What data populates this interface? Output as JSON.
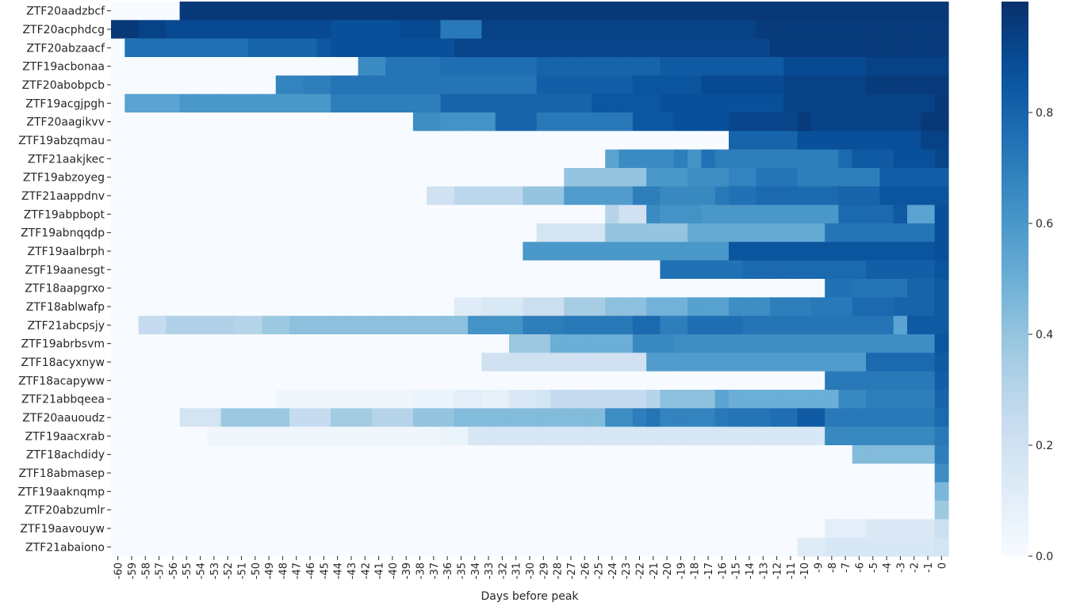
{
  "chart_data": {
    "type": "heatmap",
    "xlabel": "Days before peak",
    "ylabel": "",
    "x": [
      -60,
      -59,
      -58,
      -57,
      -56,
      -55,
      -54,
      -53,
      -52,
      -51,
      -50,
      -49,
      -48,
      -47,
      -46,
      -45,
      -44,
      -43,
      -42,
      -41,
      -40,
      -39,
      -38,
      -37,
      -36,
      -35,
      -34,
      -33,
      -32,
      -31,
      -30,
      -29,
      -28,
      -27,
      -26,
      -25,
      -24,
      -23,
      -22,
      -21,
      -20,
      -19,
      -18,
      -17,
      -16,
      -15,
      -14,
      -13,
      -12,
      -11,
      -10,
      -9,
      -8,
      -7,
      -6,
      -5,
      -4,
      -3,
      -2,
      -1,
      0
    ],
    "rows": [
      "ZTF20aadzbcf",
      "ZTF20acphdcg",
      "ZTF20abzaacf",
      "ZTF19acbonaa",
      "ZTF20abobpcb",
      "ZTF19acgjpgh",
      "ZTF20aagikvv",
      "ZTF19abzqmau",
      "ZTF21aakjkec",
      "ZTF19abzoyeg",
      "ZTF21aappdnv",
      "ZTF19abpbopt",
      "ZTF19abnqqdp",
      "ZTF19aalbrph",
      "ZTF19aanesgt",
      "ZTF18aapgrxo",
      "ZTF18ablwafp",
      "ZTF21abcpsjy",
      "ZTF19abrbsvm",
      "ZTF18acyxnyw",
      "ZTF18acapyww",
      "ZTF21abbqeea",
      "ZTF20aauoudz",
      "ZTF19aacxrab",
      "ZTF18achdidy",
      "ZTF18abmasep",
      "ZTF19aaknqmp",
      "ZTF20abzumlr",
      "ZTF19aavouyw",
      "ZTF21abaiono"
    ],
    "segments": [
      [
        [
          -60,
          -56,
          0.0
        ],
        [
          -55,
          0,
          0.97
        ]
      ],
      [
        [
          -60,
          -59,
          0.97
        ],
        [
          -58,
          -57,
          0.93
        ],
        [
          -56,
          -45,
          0.9
        ],
        [
          -44,
          -40,
          0.88
        ],
        [
          -39,
          -37,
          0.9
        ],
        [
          -36,
          -34,
          0.72
        ],
        [
          -33,
          -14,
          0.93
        ],
        [
          -13,
          0,
          0.96
        ]
      ],
      [
        [
          -60,
          -59,
          0.0
        ],
        [
          -59,
          -51,
          0.75
        ],
        [
          -50,
          -46,
          0.8
        ],
        [
          -45,
          -45,
          0.85
        ],
        [
          -44,
          -36,
          0.88
        ],
        [
          -35,
          -13,
          0.92
        ],
        [
          -12,
          0,
          0.96
        ]
      ],
      [
        [
          -60,
          -43,
          0.0
        ],
        [
          -42,
          -41,
          0.65
        ],
        [
          -40,
          -37,
          0.74
        ],
        [
          -36,
          -30,
          0.76
        ],
        [
          -29,
          -21,
          0.8
        ],
        [
          -20,
          -12,
          0.84
        ],
        [
          -11,
          -6,
          0.9
        ],
        [
          -5,
          0,
          0.93
        ]
      ],
      [
        [
          -60,
          -49,
          0.0
        ],
        [
          -48,
          -47,
          0.68
        ],
        [
          -46,
          -45,
          0.7
        ],
        [
          -44,
          -30,
          0.74
        ],
        [
          -29,
          -23,
          0.82
        ],
        [
          -22,
          -18,
          0.86
        ],
        [
          -17,
          -12,
          0.9
        ],
        [
          -11,
          -6,
          0.93
        ],
        [
          -5,
          0,
          0.96
        ]
      ],
      [
        [
          -60,
          -59,
          0.0
        ],
        [
          -59,
          -56,
          0.55
        ],
        [
          -55,
          -45,
          0.6
        ],
        [
          -44,
          -37,
          0.7
        ],
        [
          -36,
          -26,
          0.8
        ],
        [
          -25,
          -21,
          0.85
        ],
        [
          -20,
          -12,
          0.88
        ],
        [
          -11,
          -1,
          0.93
        ],
        [
          0,
          0,
          0.97
        ]
      ],
      [
        [
          -60,
          -39,
          0.0
        ],
        [
          -38,
          -37,
          0.64
        ],
        [
          -36,
          -33,
          0.62
        ],
        [
          -32,
          -30,
          0.8
        ],
        [
          -29,
          -23,
          0.72
        ],
        [
          -22,
          -20,
          0.85
        ],
        [
          -19,
          -16,
          0.88
        ],
        [
          -15,
          -11,
          0.92
        ],
        [
          -10,
          -10,
          0.96
        ],
        [
          -9,
          -2,
          0.93
        ],
        [
          -1,
          0,
          0.97
        ]
      ],
      [
        [
          -60,
          -16,
          0.0
        ],
        [
          -15,
          -11,
          0.8
        ],
        [
          -10,
          -2,
          0.88
        ],
        [
          -1,
          0,
          0.93
        ]
      ],
      [
        [
          -60,
          -25,
          0.0
        ],
        [
          -24,
          -24,
          0.55
        ],
        [
          -23,
          -20,
          0.65
        ],
        [
          -19,
          -19,
          0.7
        ],
        [
          -18,
          -18,
          0.62
        ],
        [
          -17,
          -17,
          0.75
        ],
        [
          -16,
          -8,
          0.7
        ],
        [
          -7,
          -7,
          0.78
        ],
        [
          -6,
          -4,
          0.84
        ],
        [
          -3,
          -1,
          0.88
        ],
        [
          0,
          0,
          0.92
        ]
      ],
      [
        [
          -60,
          -28,
          0.0
        ],
        [
          -27,
          -22,
          0.4
        ],
        [
          -21,
          -19,
          0.6
        ],
        [
          -18,
          -16,
          0.64
        ],
        [
          -15,
          -14,
          0.68
        ],
        [
          -13,
          -11,
          0.74
        ],
        [
          -10,
          -5,
          0.7
        ],
        [
          -4,
          0,
          0.82
        ]
      ],
      [
        [
          -60,
          -38,
          0.0
        ],
        [
          -37,
          -36,
          0.2
        ],
        [
          -35,
          -31,
          0.28
        ],
        [
          -30,
          -28,
          0.4
        ],
        [
          -27,
          -23,
          0.58
        ],
        [
          -22,
          -21,
          0.7
        ],
        [
          -20,
          -17,
          0.66
        ],
        [
          -16,
          -16,
          0.72
        ],
        [
          -15,
          -14,
          0.75
        ],
        [
          -13,
          -8,
          0.78
        ],
        [
          -7,
          -5,
          0.8
        ],
        [
          -4,
          0,
          0.86
        ]
      ],
      [
        [
          -60,
          -25,
          0.0
        ],
        [
          -24,
          -24,
          0.3
        ],
        [
          -23,
          -22,
          0.2
        ],
        [
          -21,
          -21,
          0.65
        ],
        [
          -20,
          -18,
          0.62
        ],
        [
          -17,
          -8,
          0.6
        ],
        [
          -7,
          -4,
          0.78
        ],
        [
          -3,
          -3,
          0.84
        ],
        [
          -2,
          -1,
          0.55
        ],
        [
          0,
          0,
          0.88
        ]
      ],
      [
        [
          -60,
          -30,
          0.0
        ],
        [
          -29,
          -25,
          0.18
        ],
        [
          -24,
          -19,
          0.4
        ],
        [
          -18,
          -9,
          0.52
        ],
        [
          -8,
          -1,
          0.74
        ],
        [
          0,
          0,
          0.88
        ]
      ],
      [
        [
          -60,
          -31,
          0.0
        ],
        [
          -30,
          -16,
          0.6
        ],
        [
          -15,
          -1,
          0.86
        ],
        [
          0,
          0,
          0.88
        ]
      ],
      [
        [
          -60,
          -21,
          0.0
        ],
        [
          -20,
          -15,
          0.75
        ],
        [
          -14,
          -6,
          0.78
        ],
        [
          -5,
          -1,
          0.82
        ],
        [
          0,
          0,
          0.86
        ]
      ],
      [
        [
          -60,
          -9,
          0.0
        ],
        [
          -8,
          -7,
          0.75
        ],
        [
          -6,
          -3,
          0.74
        ],
        [
          -2,
          -1,
          0.8
        ],
        [
          0,
          0,
          0.84
        ]
      ],
      [
        [
          -60,
          -36,
          0.0
        ],
        [
          -35,
          -34,
          0.12
        ],
        [
          -33,
          -31,
          0.15
        ],
        [
          -30,
          -28,
          0.22
        ],
        [
          -27,
          -25,
          0.35
        ],
        [
          -24,
          -22,
          0.42
        ],
        [
          -21,
          -19,
          0.48
        ],
        [
          -18,
          -16,
          0.56
        ],
        [
          -15,
          -13,
          0.64
        ],
        [
          -12,
          -10,
          0.7
        ],
        [
          -9,
          -7,
          0.72
        ],
        [
          -6,
          -4,
          0.78
        ],
        [
          -3,
          -1,
          0.8
        ],
        [
          0,
          0,
          0.84
        ]
      ],
      [
        [
          -60,
          -59,
          0.0
        ],
        [
          -58,
          -57,
          0.25
        ],
        [
          -56,
          -52,
          0.32
        ],
        [
          -51,
          -50,
          0.3
        ],
        [
          -49,
          -48,
          0.38
        ],
        [
          -47,
          -35,
          0.42
        ],
        [
          -34,
          -31,
          0.62
        ],
        [
          -30,
          -28,
          0.7
        ],
        [
          -27,
          -23,
          0.72
        ],
        [
          -22,
          -21,
          0.78
        ],
        [
          -20,
          -19,
          0.7
        ],
        [
          -18,
          -15,
          0.76
        ],
        [
          -14,
          -4,
          0.74
        ],
        [
          -3,
          -3,
          0.55
        ],
        [
          -2,
          -1,
          0.84
        ],
        [
          0,
          0,
          0.84
        ]
      ],
      [
        [
          -60,
          -32,
          0.0
        ],
        [
          -31,
          -29,
          0.38
        ],
        [
          -28,
          -23,
          0.5
        ],
        [
          -22,
          -20,
          0.66
        ],
        [
          -19,
          -1,
          0.64
        ],
        [
          0,
          0,
          0.86
        ]
      ],
      [
        [
          -60,
          -34,
          0.0
        ],
        [
          -33,
          -22,
          0.2
        ],
        [
          -21,
          -6,
          0.58
        ],
        [
          -5,
          -1,
          0.78
        ],
        [
          0,
          0,
          0.84
        ]
      ],
      [
        [
          -60,
          -9,
          0.0
        ],
        [
          -8,
          -1,
          0.72
        ],
        [
          0,
          0,
          0.82
        ]
      ],
      [
        [
          -60,
          -49,
          0.0
        ],
        [
          -48,
          -39,
          0.04
        ],
        [
          -38,
          -36,
          0.06
        ],
        [
          -35,
          -34,
          0.1
        ],
        [
          -33,
          -32,
          0.08
        ],
        [
          -31,
          -30,
          0.14
        ],
        [
          -29,
          -29,
          0.18
        ],
        [
          -28,
          -22,
          0.25
        ],
        [
          -21,
          -21,
          0.3
        ],
        [
          -20,
          -17,
          0.42
        ],
        [
          -16,
          -16,
          0.55
        ],
        [
          -15,
          -8,
          0.5
        ],
        [
          -7,
          -6,
          0.66
        ],
        [
          -5,
          -1,
          0.7
        ],
        [
          0,
          0,
          0.8
        ]
      ],
      [
        [
          -60,
          -56,
          0.0
        ],
        [
          -55,
          -53,
          0.18
        ],
        [
          -52,
          -48,
          0.38
        ],
        [
          -47,
          -45,
          0.25
        ],
        [
          -44,
          -42,
          0.36
        ],
        [
          -41,
          -39,
          0.3
        ],
        [
          -38,
          -36,
          0.4
        ],
        [
          -35,
          -25,
          0.44
        ],
        [
          -24,
          -23,
          0.64
        ],
        [
          -22,
          -22,
          0.7
        ],
        [
          -21,
          -21,
          0.74
        ],
        [
          -20,
          -17,
          0.68
        ],
        [
          -16,
          -16,
          0.72
        ],
        [
          -15,
          -13,
          0.74
        ],
        [
          -12,
          -11,
          0.76
        ],
        [
          -10,
          -9,
          0.84
        ],
        [
          -8,
          -1,
          0.72
        ],
        [
          0,
          0,
          0.78
        ]
      ],
      [
        [
          -60,
          -54,
          0.0
        ],
        [
          -53,
          -37,
          0.04
        ],
        [
          -36,
          -35,
          0.06
        ],
        [
          -34,
          -9,
          0.16
        ],
        [
          -8,
          -1,
          0.66
        ],
        [
          0,
          0,
          0.72
        ]
      ],
      [
        [
          -60,
          -7,
          0.0
        ],
        [
          -6,
          -1,
          0.44
        ],
        [
          0,
          0,
          0.7
        ]
      ],
      [
        [
          -60,
          -1,
          0.0
        ],
        [
          0,
          0,
          0.64
        ]
      ],
      [
        [
          -60,
          -1,
          0.0
        ],
        [
          0,
          0,
          0.46
        ]
      ],
      [
        [
          -60,
          -1,
          0.0
        ],
        [
          0,
          0,
          0.38
        ]
      ],
      [
        [
          -60,
          -9,
          0.0
        ],
        [
          -8,
          -6,
          0.1
        ],
        [
          -5,
          -1,
          0.14
        ],
        [
          0,
          0,
          0.22
        ]
      ],
      [
        [
          -60,
          -11,
          0.0
        ],
        [
          -10,
          -9,
          0.12
        ],
        [
          -8,
          -1,
          0.16
        ],
        [
          0,
          0,
          0.18
        ]
      ]
    ],
    "colorbar": {
      "colormap": "Blues",
      "range": [
        0.0,
        1.0
      ],
      "ticks": [
        "0.0",
        "0.2",
        "0.4",
        "0.6",
        "0.8"
      ]
    }
  }
}
